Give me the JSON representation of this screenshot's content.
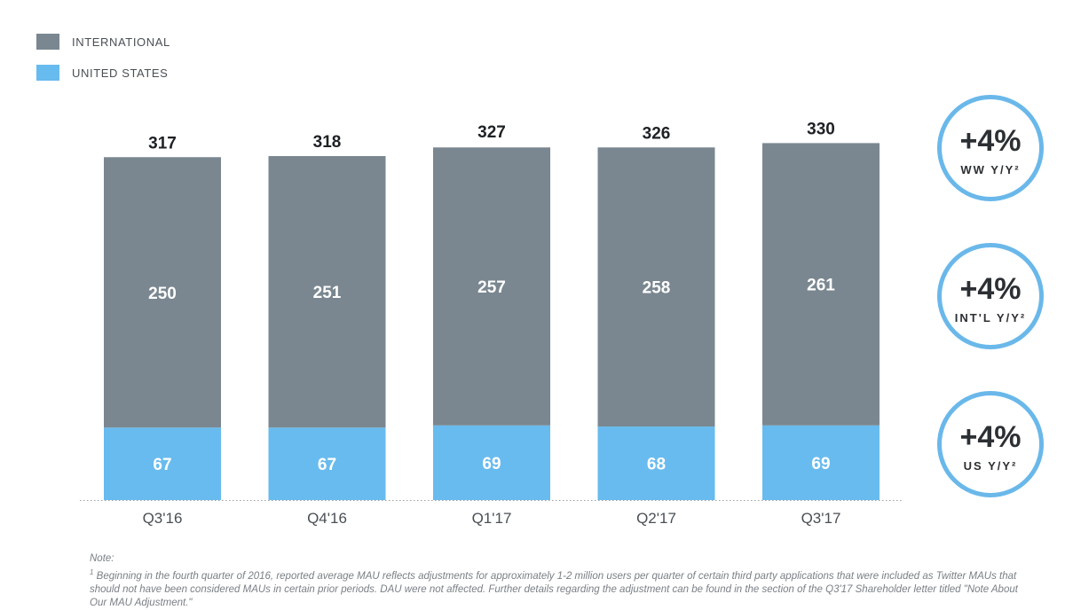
{
  "legend": {
    "international_label": "INTERNATIONAL",
    "us_label": "UNITED STATES",
    "international_color": "#7a8790",
    "us_color": "#68bbee"
  },
  "chart_data": {
    "type": "bar",
    "stacked": true,
    "categories": [
      "Q3'16",
      "Q4'16",
      "Q1'17",
      "Q2'17",
      "Q3'17"
    ],
    "series": [
      {
        "name": "UNITED STATES",
        "values": [
          67,
          67,
          69,
          68,
          69
        ]
      },
      {
        "name": "INTERNATIONAL",
        "values": [
          250,
          251,
          257,
          258,
          261
        ]
      }
    ],
    "totals": [
      317,
      318,
      327,
      326,
      330
    ],
    "legend_position": "top-left",
    "grid": false
  },
  "badges": [
    {
      "value": "+4%",
      "label": "WW Y/Y²"
    },
    {
      "value": "+4%",
      "label": "INT'L Y/Y²"
    },
    {
      "value": "+4%",
      "label": "US Y/Y²"
    }
  ],
  "note": {
    "heading": "Note:",
    "footnote_mark": "1",
    "text": "Beginning in the fourth quarter of 2016, reported average MAU reflects adjustments for approximately 1-2 million users per quarter of certain third party applications that were included as Twitter MAUs that should not have been considered MAUs in certain prior periods. DAU were not affected. Further details regarding the adjustment can be found in the section of the Q3'17 Shareholder letter titled \"Note About Our MAU Adjustment.\""
  }
}
